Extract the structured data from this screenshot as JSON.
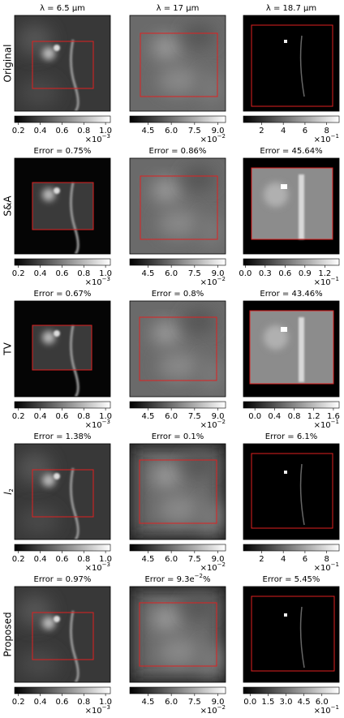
{
  "columns": [
    "λ = 6.5 μm",
    "λ = 17 μm",
    "λ = 18.7 μm"
  ],
  "rows": [
    {
      "label": "Original",
      "panels": [
        {
          "colorbar": {
            "ticks": [
              "0.2",
              "0.4",
              "0.6",
              "0.8",
              "1.0"
            ],
            "multiplier": {
              "base": "×10",
              "exponent": "−3"
            }
          }
        },
        {
          "colorbar": {
            "ticks": [
              "4.5",
              "6.0",
              "7.5",
              "9.0"
            ],
            "multiplier": {
              "base": "×10",
              "exponent": "−2"
            }
          }
        },
        {
          "colorbar": {
            "ticks": [
              "2",
              "4",
              "6",
              "8"
            ],
            "multiplier": {
              "base": "×10",
              "exponent": "−1"
            }
          }
        }
      ]
    },
    {
      "label": "S&A",
      "panels": [
        {
          "title": "Error = 0.75%",
          "colorbar": {
            "ticks": [
              "0.2",
              "0.4",
              "0.6",
              "0.8",
              "1.0"
            ],
            "multiplier": {
              "base": "×10",
              "exponent": "−3"
            }
          }
        },
        {
          "title": "Error = 0.86%",
          "colorbar": {
            "ticks": [
              "4.5",
              "6.0",
              "7.5",
              "9.0"
            ],
            "multiplier": {
              "base": "×10",
              "exponent": "−2"
            }
          }
        },
        {
          "title": "Error = 45.64%",
          "colorbar": {
            "ticks": [
              "0.0",
              "0.3",
              "0.6",
              "0.9",
              "1.2"
            ],
            "multiplier": {
              "base": "×10",
              "exponent": "−1"
            }
          }
        }
      ]
    },
    {
      "label": "TV",
      "panels": [
        {
          "title": "Error = 0.67%",
          "colorbar": {
            "ticks": [
              "0.2",
              "0.4",
              "0.6",
              "0.8",
              "1.0"
            ],
            "multiplier": {
              "base": "×10",
              "exponent": "−3"
            }
          }
        },
        {
          "title": "Error = 0.8%",
          "colorbar": {
            "ticks": [
              "4.5",
              "6.0",
              "7.5",
              "9.0"
            ],
            "multiplier": {
              "base": "×10",
              "exponent": "−2"
            }
          }
        },
        {
          "title": "Error = 43.46%",
          "colorbar": {
            "ticks": [
              "0.0",
              "0.4",
              "0.8",
              "1.2",
              "1.6"
            ],
            "multiplier": {
              "base": "×10",
              "exponent": "−1"
            }
          }
        }
      ]
    },
    {
      "label": {
        "text": "l",
        "subscript": "2"
      },
      "panels": [
        {
          "title": "Error = 1.38%",
          "colorbar": {
            "ticks": [
              "0.2",
              "0.4",
              "0.6",
              "0.8",
              "1.0"
            ],
            "multiplier": {
              "base": "×10",
              "exponent": "−3"
            }
          }
        },
        {
          "title": "Error = 0.1%",
          "colorbar": {
            "ticks": [
              "4.5",
              "6.0",
              "7.5",
              "9.0"
            ],
            "multiplier": {
              "base": "×10",
              "exponent": "−2"
            }
          }
        },
        {
          "title": "Error = 6.1%",
          "colorbar": {
            "ticks": [
              "2",
              "4",
              "6",
              "8"
            ],
            "multiplier": {
              "base": "×10",
              "exponent": "−1"
            }
          }
        }
      ]
    },
    {
      "label": "Proposed",
      "panels": [
        {
          "title": "Error = 0.97%",
          "colorbar": {
            "ticks": [
              "0.2",
              "0.4",
              "0.6",
              "0.8",
              "1.0"
            ],
            "multiplier": {
              "base": "×10",
              "exponent": "−3"
            }
          }
        },
        {
          "title": {
            "text": "Error = 9.3e",
            "superscript": "−2",
            "suffix": "%"
          },
          "colorbar": {
            "ticks": [
              "4.5",
              "6.0",
              "7.5",
              "9.0"
            ],
            "multiplier": {
              "base": "×10",
              "exponent": "−2"
            }
          }
        },
        {
          "title": "Error = 5.45%",
          "colorbar": {
            "ticks": [
              "0.0",
              "1.5",
              "3.0",
              "4.5",
              "6.0"
            ],
            "multiplier": {
              "base": "×10",
              "exponent": "−1"
            }
          }
        }
      ]
    }
  ]
}
